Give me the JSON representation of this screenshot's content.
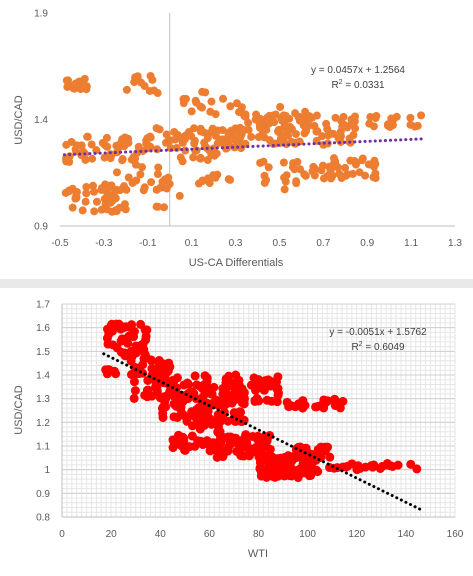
{
  "charts": [
    {
      "id": "top",
      "chart_data": {
        "type": "scatter",
        "xlabel": "US-CA Differentials",
        "ylabel": "USD/CAD",
        "xlim": [
          -0.5,
          1.3
        ],
        "ylim": [
          0.9,
          1.9
        ],
        "x_ticks": [
          "-0.5",
          "-0.3",
          "-0.1",
          "0.1",
          "0.3",
          "0.5",
          "0.7",
          "0.9",
          "1.1",
          "1.3"
        ],
        "y_ticks": [
          "0.9",
          "1.4",
          "1.9"
        ],
        "grid": false,
        "marker_color": "#ED7D31",
        "trend_color": "#7030A0",
        "trend": {
          "slope": 0.0457,
          "intercept": 1.2564,
          "x_range": [
            -0.48,
            1.16
          ]
        },
        "equation": "y = 0.0457x + 1.2564",
        "r2_label": "R",
        "r2_sup": "2",
        "r2_value": " = 0.0331",
        "clusters": [
          {
            "x": [
              -0.48,
              -0.35
            ],
            "y": [
              1.54,
              1.6
            ],
            "n": 14
          },
          {
            "x": [
              -0.2,
              -0.05
            ],
            "y": [
              1.52,
              1.61
            ],
            "n": 12
          },
          {
            "x": [
              0.05,
              0.4
            ],
            "y": [
              1.42,
              1.53
            ],
            "n": 20
          },
          {
            "x": [
              0.3,
              0.65
            ],
            "y": [
              1.33,
              1.47
            ],
            "n": 28
          },
          {
            "x": [
              -0.48,
              -0.1
            ],
            "y": [
              1.2,
              1.32
            ],
            "n": 50
          },
          {
            "x": [
              -0.1,
              0.35
            ],
            "y": [
              1.26,
              1.36
            ],
            "n": 70
          },
          {
            "x": [
              0.3,
              0.85
            ],
            "y": [
              1.28,
              1.42
            ],
            "n": 90
          },
          {
            "x": [
              0.85,
              1.16
            ],
            "y": [
              1.35,
              1.42
            ],
            "n": 18
          },
          {
            "x": [
              -0.48,
              -0.2
            ],
            "y": [
              0.96,
              1.1
            ],
            "n": 45
          },
          {
            "x": [
              -0.25,
              0.0
            ],
            "y": [
              1.05,
              1.2
            ],
            "n": 20
          },
          {
            "x": [
              0.1,
              0.3
            ],
            "y": [
              1.08,
              1.15
            ],
            "n": 10
          },
          {
            "x": [
              0.4,
              0.7
            ],
            "y": [
              1.05,
              1.22
            ],
            "n": 22
          },
          {
            "x": [
              0.65,
              0.95
            ],
            "y": [
              1.12,
              1.22
            ],
            "n": 40
          },
          {
            "x": [
              0.05,
              0.25
            ],
            "y": [
              1.2,
              1.26
            ],
            "n": 14
          },
          {
            "x": [
              -0.08,
              0.05
            ],
            "y": [
              0.98,
              1.08
            ],
            "n": 6
          }
        ]
      }
    },
    {
      "id": "bottom",
      "chart_data": {
        "type": "scatter",
        "xlabel": "WTI",
        "ylabel": "USD/CAD",
        "xlim": [
          0,
          160
        ],
        "ylim": [
          0.8,
          1.7
        ],
        "x_ticks": [
          "0",
          "20",
          "40",
          "60",
          "80",
          "100",
          "120",
          "140",
          "160"
        ],
        "y_ticks": [
          "0.8",
          "0.9",
          "1",
          "1.1",
          "1.2",
          "1.3",
          "1.4",
          "1.5",
          "1.6",
          "1.7"
        ],
        "grid": true,
        "marker_color": "#FF0000",
        "trend_color": "#000000",
        "trend": {
          "slope": -0.0051,
          "intercept": 1.5762,
          "x_range": [
            17,
            146
          ]
        },
        "equation": "y = -0.0051x + 1.5762",
        "r2_label": "R",
        "r2_sup": "2",
        "r2_value": " = 0.6049",
        "clusters": [
          {
            "x": [
              18,
              35
            ],
            "y": [
              1.48,
              1.62
            ],
            "n": 45
          },
          {
            "x": [
              17,
              22
            ],
            "y": [
              1.4,
              1.43
            ],
            "n": 6
          },
          {
            "x": [
              28,
              45
            ],
            "y": [
              1.3,
              1.48
            ],
            "n": 50
          },
          {
            "x": [
              40,
              60
            ],
            "y": [
              1.22,
              1.4
            ],
            "n": 70
          },
          {
            "x": [
              55,
              75
            ],
            "y": [
              1.2,
              1.35
            ],
            "n": 70
          },
          {
            "x": [
              65,
              90
            ],
            "y": [
              1.28,
              1.4
            ],
            "n": 50
          },
          {
            "x": [
              90,
              122
            ],
            "y": [
              1.26,
              1.3
            ],
            "n": 22
          },
          {
            "x": [
              45,
              65
            ],
            "y": [
              1.08,
              1.22
            ],
            "n": 40
          },
          {
            "x": [
              60,
              85
            ],
            "y": [
              1.05,
              1.15
            ],
            "n": 60
          },
          {
            "x": [
              80,
              105
            ],
            "y": [
              0.96,
              1.06
            ],
            "n": 80
          },
          {
            "x": [
              95,
              110
            ],
            "y": [
              1.05,
              1.1
            ],
            "n": 30
          },
          {
            "x": [
              105,
              145
            ],
            "y": [
              1.0,
              1.03
            ],
            "n": 24
          }
        ]
      }
    }
  ]
}
